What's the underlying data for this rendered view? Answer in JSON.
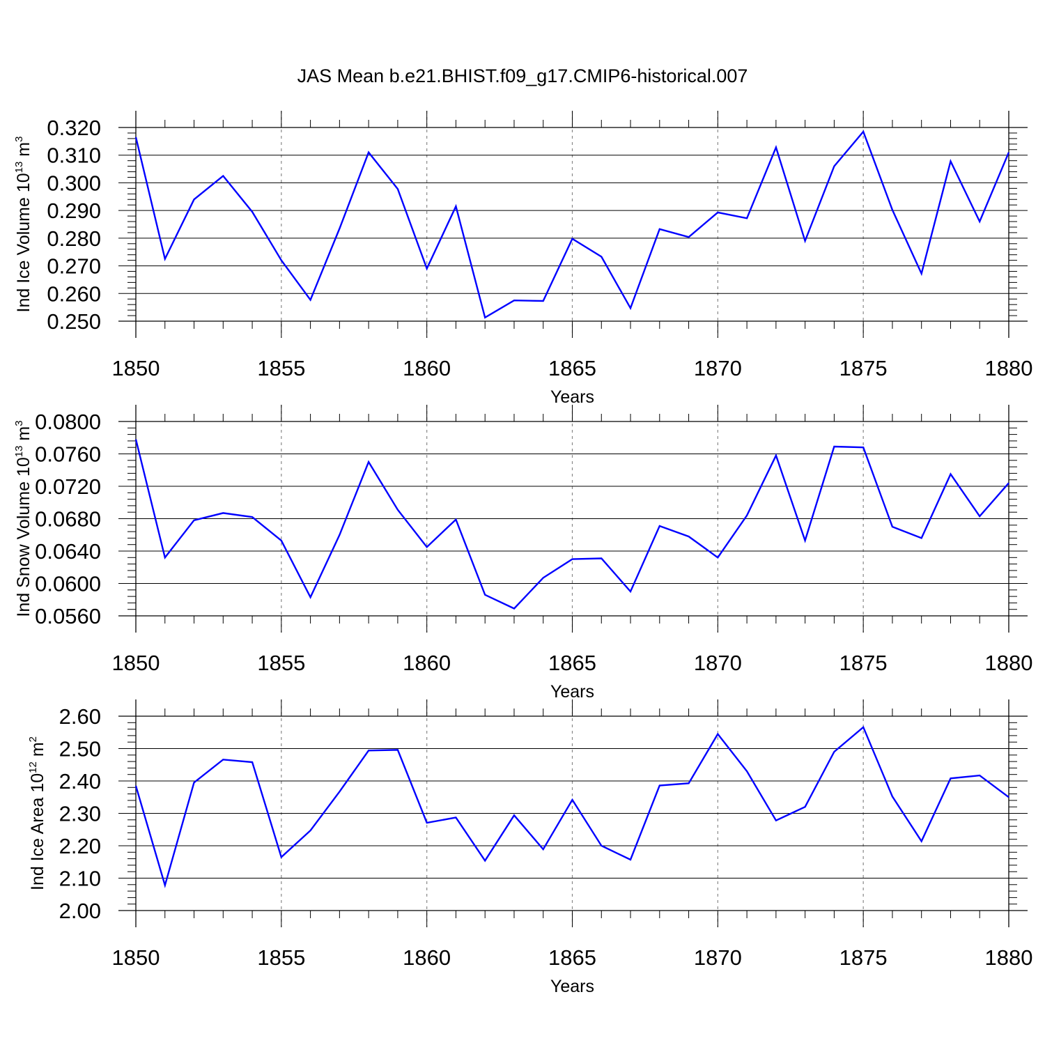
{
  "title": "JAS Mean b.e21.BHIST.f09_g17.CMIP6-historical.007",
  "colors": {
    "series": "#0000ff",
    "axis": "#000000",
    "grid": "#888888"
  },
  "chart_data": [
    {
      "type": "line",
      "ylabel": {
        "prefix": "Ind Ice Volume 10",
        "exponent": "13",
        "unit": " m",
        "unit_exponent": "3"
      },
      "xlabel": "Years",
      "xlim": [
        1850,
        1880
      ],
      "ylim": [
        0.25,
        0.32
      ],
      "xticks": [
        1850,
        1855,
        1860,
        1865,
        1870,
        1875,
        1880
      ],
      "yticks": [
        "0.250",
        "0.260",
        "0.270",
        "0.280",
        "0.290",
        "0.300",
        "0.310",
        "0.320"
      ],
      "x": [
        1850,
        1851,
        1852,
        1853,
        1854,
        1855,
        1856,
        1857,
        1858,
        1859,
        1860,
        1861,
        1862,
        1863,
        1864,
        1865,
        1866,
        1867,
        1868,
        1869,
        1870,
        1871,
        1872,
        1873,
        1874,
        1875,
        1876,
        1877,
        1878,
        1879,
        1880
      ],
      "series": [
        {
          "name": "Ind Ice Volume",
          "values": [
            0.3165,
            0.2725,
            0.294,
            0.3025,
            0.2895,
            0.272,
            0.2577,
            0.2835,
            0.311,
            0.2978,
            0.269,
            0.2915,
            0.2513,
            0.2575,
            0.2573,
            0.2798,
            0.2733,
            0.2547,
            0.2833,
            0.2804,
            0.2893,
            0.2872,
            0.3128,
            0.279,
            0.306,
            0.3185,
            0.2902,
            0.2672,
            0.3078,
            0.286,
            0.311
          ]
        }
      ]
    },
    {
      "type": "line",
      "ylabel": {
        "prefix": "Ind Snow Volume 10",
        "exponent": "13",
        "unit": " m",
        "unit_exponent": "3"
      },
      "xlabel": "Years",
      "xlim": [
        1850,
        1880
      ],
      "ylim": [
        0.056,
        0.08
      ],
      "xticks": [
        1850,
        1855,
        1860,
        1865,
        1870,
        1875,
        1880
      ],
      "yticks": [
        "0.0560",
        "0.0600",
        "0.0640",
        "0.0680",
        "0.0720",
        "0.0760",
        "0.0800"
      ],
      "x": [
        1850,
        1851,
        1852,
        1853,
        1854,
        1855,
        1856,
        1857,
        1858,
        1859,
        1860,
        1861,
        1862,
        1863,
        1864,
        1865,
        1866,
        1867,
        1868,
        1869,
        1870,
        1871,
        1872,
        1873,
        1874,
        1875,
        1876,
        1877,
        1878,
        1879,
        1880
      ],
      "series": [
        {
          "name": "Ind Snow Volume",
          "values": [
            0.0778,
            0.0632,
            0.0678,
            0.0687,
            0.0682,
            0.0653,
            0.0583,
            0.066,
            0.075,
            0.0691,
            0.0645,
            0.0679,
            0.0586,
            0.0569,
            0.0607,
            0.063,
            0.0631,
            0.059,
            0.0671,
            0.0658,
            0.0632,
            0.0684,
            0.0758,
            0.0653,
            0.0769,
            0.0768,
            0.067,
            0.0656,
            0.0735,
            0.0683,
            0.0724
          ]
        }
      ]
    },
    {
      "type": "line",
      "ylabel": {
        "prefix": "Ind Ice Area 10",
        "exponent": "12",
        "unit": " m",
        "unit_exponent": "2"
      },
      "xlabel": "Years",
      "xlim": [
        1850,
        1880
      ],
      "ylim": [
        2.0,
        2.6
      ],
      "xticks": [
        1850,
        1855,
        1860,
        1865,
        1870,
        1875,
        1880
      ],
      "yticks": [
        "2.00",
        "2.10",
        "2.20",
        "2.30",
        "2.40",
        "2.50",
        "2.60"
      ],
      "x": [
        1850,
        1851,
        1852,
        1853,
        1854,
        1855,
        1856,
        1857,
        1858,
        1859,
        1860,
        1861,
        1862,
        1863,
        1864,
        1865,
        1866,
        1867,
        1868,
        1869,
        1870,
        1871,
        1872,
        1873,
        1874,
        1875,
        1876,
        1877,
        1878,
        1879,
        1880
      ],
      "series": [
        {
          "name": "Ind Ice Area",
          "values": [
            2.385,
            2.078,
            2.395,
            2.466,
            2.458,
            2.165,
            2.247,
            2.367,
            2.494,
            2.496,
            2.271,
            2.287,
            2.154,
            2.294,
            2.189,
            2.342,
            2.2,
            2.157,
            2.386,
            2.393,
            2.545,
            2.43,
            2.278,
            2.32,
            2.49,
            2.566,
            2.352,
            2.214,
            2.408,
            2.417,
            2.35
          ]
        }
      ]
    }
  ]
}
